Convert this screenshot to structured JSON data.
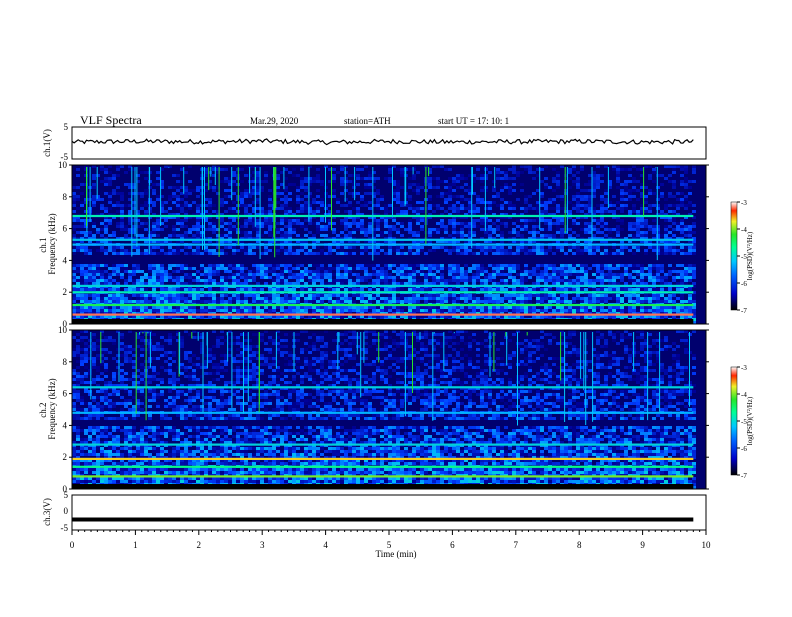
{
  "header": {
    "title": "VLF  Spectra",
    "date": "Mar.29, 2020",
    "station": "station=ATH",
    "start_ut": "start  UT  =    17: 10: 1"
  },
  "colors": {
    "background": "#00006e",
    "noise_low": "#0014c8",
    "noise_mid": "#1e6eff",
    "noise_high": "#00c8ff",
    "band_green": "#28e628",
    "band_yellow": "#f0f028",
    "band_red": "#ff2800",
    "trace": "#000000"
  },
  "chart_data": [
    {
      "type": "line",
      "name": "channel-1-voltage",
      "ylabel": "ch.1(V)",
      "ylim": [
        -5,
        5
      ],
      "yticks": [
        "5",
        "-5"
      ],
      "xlim": [
        0,
        10
      ],
      "x": [
        0,
        1,
        2,
        3,
        4,
        5,
        6,
        7,
        8,
        9,
        9.8
      ],
      "y": [
        0.3,
        0.5,
        0.4,
        0.6,
        0.2,
        0.5,
        0.3,
        0.4,
        0.5,
        0.3,
        0.4
      ],
      "grid": false
    },
    {
      "type": "heatmap",
      "name": "channel-1-spectrogram",
      "ylabel": "ch.1\nFrequency  (kHz)",
      "ylim": [
        0,
        10
      ],
      "yticks": [
        "0",
        "2",
        "4",
        "6",
        "8",
        "10"
      ],
      "xlim": [
        0,
        10
      ],
      "colorbar": {
        "label": "log(PSD)(V²/Hz)",
        "range": [
          -7,
          -3
        ],
        "ticks": [
          "-3",
          "-4",
          "-5",
          "-6",
          "-7"
        ]
      },
      "bands": [
        {
          "freq_khz": 0.6,
          "level": -3.2
        },
        {
          "freq_khz": 1.2,
          "level": -4.6
        },
        {
          "freq_khz": 2.0,
          "level": -5.0
        },
        {
          "freq_khz": 2.4,
          "level": -5.2
        },
        {
          "freq_khz": 5.0,
          "level": -5.4
        },
        {
          "freq_khz": 5.3,
          "level": -5.3
        },
        {
          "freq_khz": 6.8,
          "level": -5.0
        }
      ],
      "dark_band_khz": [
        3.8,
        4.4
      ],
      "grid": false
    },
    {
      "type": "heatmap",
      "name": "channel-2-spectrogram",
      "ylabel": "ch.2\nFrequency  (kHz)",
      "ylim": [
        0,
        10
      ],
      "yticks": [
        "0",
        "2",
        "4",
        "6",
        "8",
        "10"
      ],
      "xlim": [
        0,
        10
      ],
      "colorbar": {
        "label": "log(PSD)(V²/Hz)",
        "range": [
          -7,
          -3
        ],
        "ticks": [
          "-3",
          "-4",
          "-5",
          "-6",
          "-7"
        ]
      },
      "bands": [
        {
          "freq_khz": 0.8,
          "level": -4.2
        },
        {
          "freq_khz": 1.4,
          "level": -4.8
        },
        {
          "freq_khz": 1.9,
          "level": -3.8
        },
        {
          "freq_khz": 2.8,
          "level": -5.2
        },
        {
          "freq_khz": 4.8,
          "level": -5.4
        },
        {
          "freq_khz": 6.4,
          "level": -5.2
        }
      ],
      "dark_band_khz": [
        4.0,
        4.4
      ],
      "grid": false
    },
    {
      "type": "line",
      "name": "channel-3-voltage",
      "ylabel": "ch.3(V)",
      "ylim": [
        -5,
        5
      ],
      "yticks": [
        "5",
        "0",
        "-5"
      ],
      "xlim": [
        0,
        10
      ],
      "x": [
        0,
        9.8
      ],
      "y": [
        -2,
        -2
      ],
      "xlabel": "Time  (min)",
      "xticks": [
        "0",
        "1",
        "2",
        "3",
        "4",
        "5",
        "6",
        "7",
        "8",
        "9",
        "10"
      ],
      "grid": false
    }
  ]
}
